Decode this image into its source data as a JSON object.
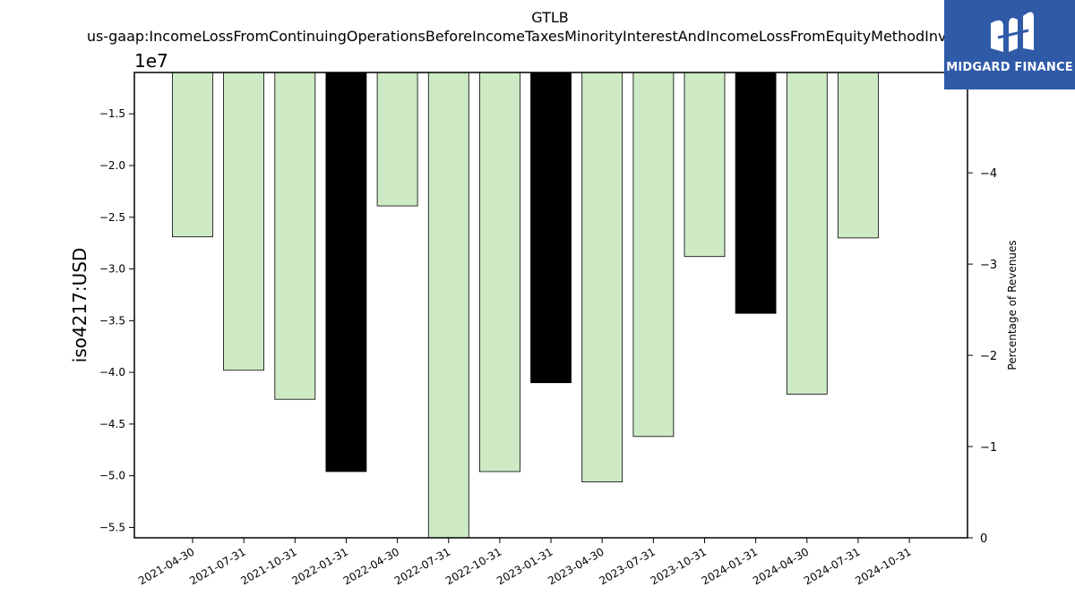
{
  "chart_data": {
    "type": "bar",
    "title": "GTLB",
    "subtitle": "us-gaap:IncomeLossFromContinuingOperationsBeforeIncomeTaxesMinorityInterestAndIncomeLossFromEquityMethodInvestments",
    "ylabel": "iso4217:USD",
    "y_exponent_label": "1e7",
    "y2label": "Percentage of Revenues",
    "ylim": [
      -56.0,
      -11.0
    ],
    "y_scale": 1000000.0,
    "yticks": [
      -15,
      -20,
      -25,
      -30,
      -35,
      -40,
      -45,
      -50,
      -55
    ],
    "ytick_labels": [
      "−1.5",
      "−2.0",
      "−2.5",
      "−3.0",
      "−3.5",
      "−4.0",
      "−4.5",
      "−5.0",
      "−5.5"
    ],
    "y2lim": [
      0,
      -5.1
    ],
    "y2ticks": [
      0,
      -1,
      -2,
      -3,
      -4
    ],
    "y2tick_labels": [
      "0",
      "−1",
      "−2",
      "−3",
      "−4"
    ],
    "categories": [
      "2021-04-30",
      "2021-07-31",
      "2021-10-31",
      "2022-01-31",
      "2022-04-30",
      "2022-07-31",
      "2022-10-31",
      "2023-01-31",
      "2023-04-30",
      "2023-07-31",
      "2023-10-31",
      "2024-01-31",
      "2024-04-30",
      "2024-07-31",
      "2024-10-31"
    ],
    "values": [
      -26.9,
      -39.8,
      -42.6,
      -49.6,
      -23.9,
      -56.0,
      -49.6,
      -41.0,
      -50.6,
      -46.2,
      -28.8,
      -34.3,
      -42.1,
      -27.0,
      null
    ],
    "bar_colors": [
      "#cdeac5",
      "#cdeac5",
      "#cdeac5",
      "#000000",
      "#cdeac5",
      "#cdeac5",
      "#cdeac5",
      "#000000",
      "#cdeac5",
      "#cdeac5",
      "#cdeac5",
      "#000000",
      "#cdeac5",
      "#cdeac5",
      null
    ],
    "grid": false
  },
  "logo": {
    "text": "MIDGARD FINANCE",
    "bg_color": "#2f5aa8"
  }
}
